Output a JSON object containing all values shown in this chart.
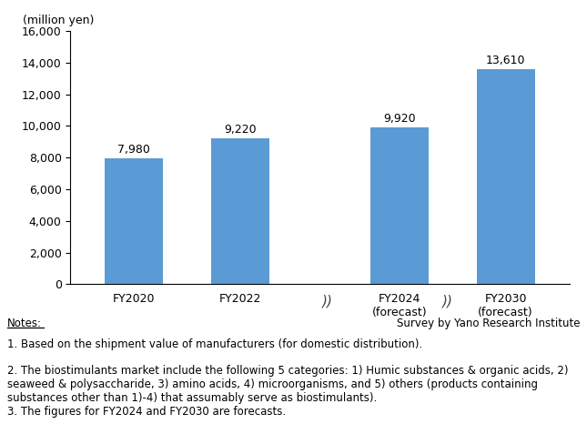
{
  "categories": [
    "FY2020",
    "FY2022",
    "FY2024\n(forecast)",
    "FY2030\n(forecast)"
  ],
  "values": [
    7980,
    9220,
    9920,
    13610
  ],
  "bar_color": "#5B9BD5",
  "ylabel": "(million yen)",
  "ylim": [
    0,
    16000
  ],
  "yticks": [
    0,
    2000,
    4000,
    6000,
    8000,
    10000,
    12000,
    14000,
    16000
  ],
  "value_labels": [
    "7,980",
    "9,220",
    "9,920",
    "13,610"
  ],
  "note_header": "Notes:",
  "note1": "1. Based on the shipment value of manufacturers (for domestic distribution).",
  "note2": "2. The biostimulants market include the following 5 categories: 1) Humic substances & organic acids, 2)\nseaweed & polysaccharide, 3) amino acids, 4) microorganisms, and 5) others (products containing\nsubstances other than 1)-4) that assumably serve as biostimulants).",
  "note3": "3. The figures for FY2024 and FY2030 are forecasts.",
  "survey_note": "Survey by Yano Research Institute",
  "background_color": "#FFFFFF",
  "bar_width": 0.55,
  "note_fontsize": 8.5,
  "axis_fontsize": 9
}
